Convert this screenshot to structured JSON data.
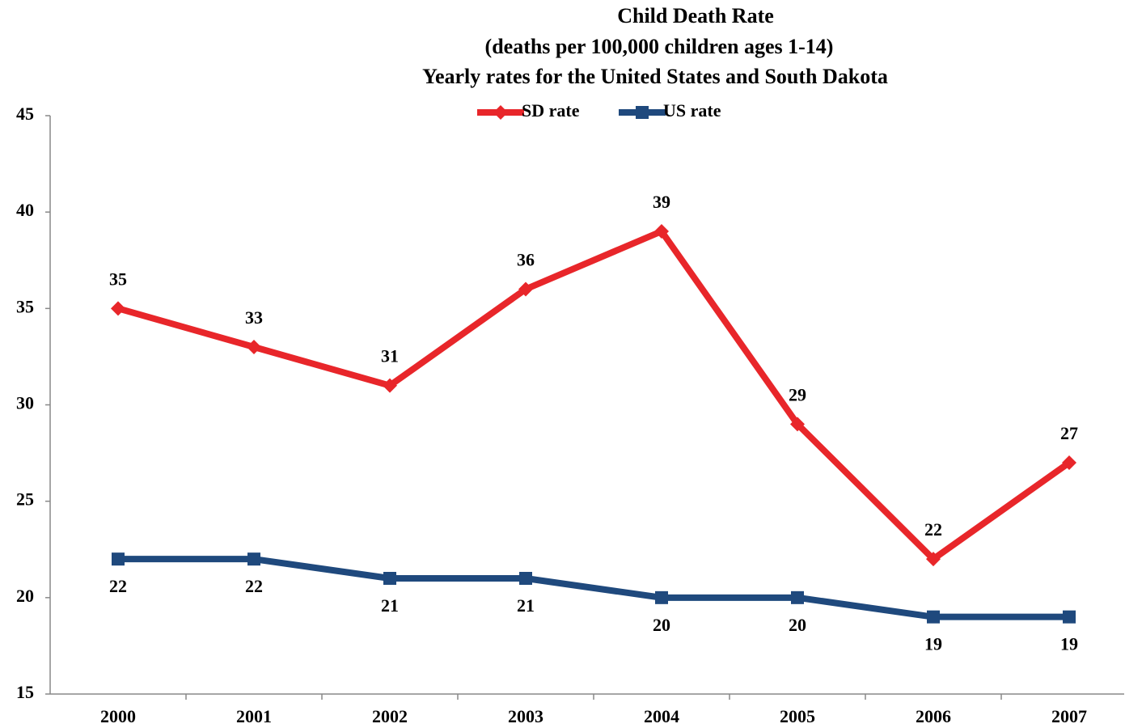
{
  "chart_data": {
    "type": "line",
    "title": [
      "Child Death Rate",
      "(deaths per 100,000 children ages 1-14)",
      "Yearly rates for the United States and South Dakota"
    ],
    "categories": [
      "2000",
      "2001",
      "2002",
      "2003",
      "2004",
      "2005",
      "2006",
      "2007"
    ],
    "series": [
      {
        "name": "SD rate",
        "color": "#e8262a",
        "marker": "diamond",
        "values": [
          35,
          33,
          31,
          36,
          39,
          29,
          22,
          27
        ]
      },
      {
        "name": "US rate",
        "color": "#1f497d",
        "marker": "square",
        "values": [
          22,
          22,
          21,
          21,
          20,
          20,
          19,
          19
        ]
      }
    ],
    "ylim": [
      15,
      45
    ],
    "yticks": [
      15,
      20,
      25,
      30,
      35,
      40,
      45
    ],
    "grid": false,
    "legend": "top"
  }
}
